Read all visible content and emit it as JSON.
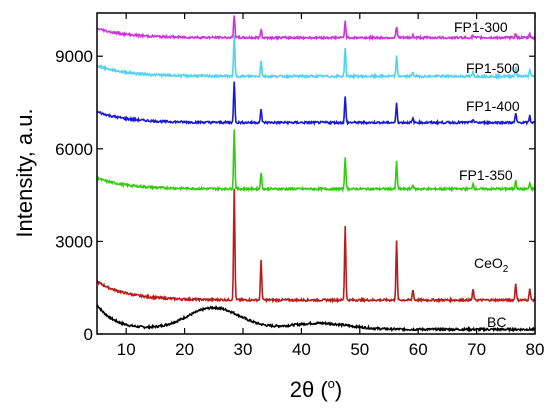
{
  "chart_data": {
    "type": "line",
    "xlabel": "2θ (",
    "xlabel_unit": "o",
    "xlabel_close": ")",
    "ylabel": "Intensity, a.u.",
    "xlim": [
      5,
      80
    ],
    "ylim": [
      0,
      10400
    ],
    "xticks": [
      10,
      20,
      30,
      40,
      50,
      60,
      70,
      80
    ],
    "yticks": [
      0,
      3000,
      6000,
      9000
    ],
    "grid": false,
    "legend": "labels placed beside each curve on the right side",
    "series": [
      {
        "name": "BC",
        "color": "#000000",
        "baseline": 150,
        "start": 800,
        "start_decay": 3,
        "humps": [
          {
            "x": 25,
            "h": 700,
            "w": 4.5
          },
          {
            "x": 43,
            "h": 200,
            "w": 5
          }
        ],
        "peaks": []
      },
      {
        "name": "CeO",
        "subscript": "2",
        "color": "#b81d1d",
        "baseline": 1100,
        "start": 600,
        "start_decay": 5,
        "humps": [],
        "peaks": [
          [
            28.5,
            3600
          ],
          [
            33.1,
            1300
          ],
          [
            47.5,
            2400
          ],
          [
            56.3,
            1900
          ],
          [
            59.1,
            350
          ],
          [
            69.4,
            350
          ],
          [
            76.7,
            550
          ],
          [
            79.1,
            380
          ]
        ]
      },
      {
        "name": "FP1-350",
        "color": "#33cc11",
        "baseline": 4700,
        "start": 350,
        "start_decay": 5,
        "humps": [],
        "peaks": [
          [
            28.5,
            1950
          ],
          [
            33.1,
            550
          ],
          [
            47.5,
            1050
          ],
          [
            56.3,
            900
          ],
          [
            59.1,
            150
          ],
          [
            69.4,
            180
          ],
          [
            76.7,
            300
          ],
          [
            79.1,
            180
          ]
        ]
      },
      {
        "name": "FP1-400",
        "color": "#1a1acc",
        "baseline": 6850,
        "start": 350,
        "start_decay": 5,
        "humps": [],
        "peaks": [
          [
            28.5,
            1350
          ],
          [
            33.1,
            420
          ],
          [
            47.5,
            850
          ],
          [
            56.3,
            620
          ],
          [
            59.1,
            130
          ],
          [
            69.4,
            120
          ],
          [
            76.7,
            300
          ],
          [
            79.1,
            220
          ]
        ]
      },
      {
        "name": "FP1-500",
        "color": "#4fd3ee",
        "baseline": 8350,
        "start": 350,
        "start_decay": 5,
        "humps": [],
        "peaks": [
          [
            28.5,
            1300
          ],
          [
            33.1,
            500
          ],
          [
            47.5,
            950
          ],
          [
            56.3,
            650
          ],
          [
            59.1,
            140
          ],
          [
            69.4,
            130
          ],
          [
            76.7,
            300
          ],
          [
            79.1,
            220
          ]
        ]
      },
      {
        "name": "FP1-300",
        "color": "#cc33dd",
        "baseline": 9600,
        "start": 300,
        "start_decay": 5,
        "humps": [],
        "peaks": [
          [
            28.5,
            750
          ],
          [
            33.1,
            270
          ],
          [
            47.5,
            550
          ],
          [
            56.3,
            380
          ],
          [
            59.1,
            80
          ],
          [
            69.4,
            70
          ],
          [
            76.7,
            150
          ],
          [
            79.1,
            120
          ]
        ]
      }
    ]
  }
}
